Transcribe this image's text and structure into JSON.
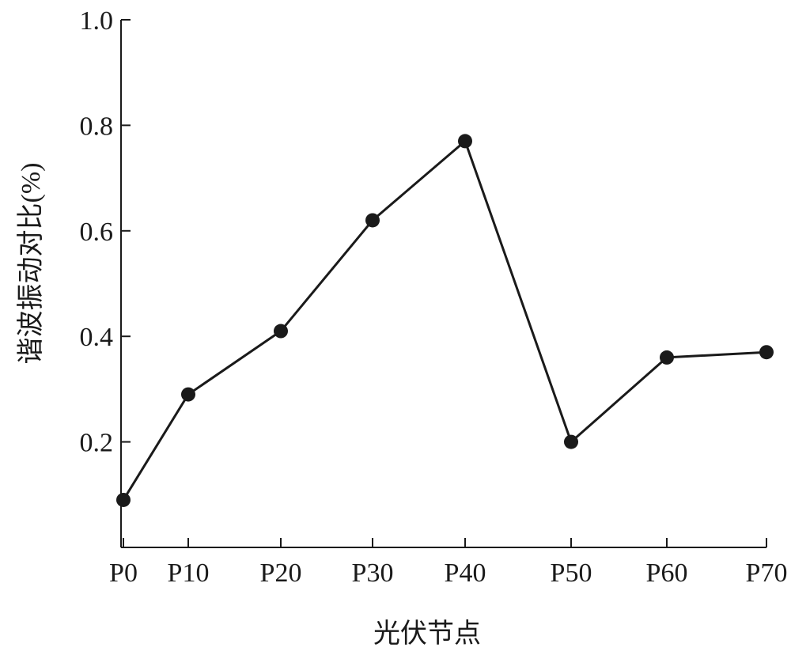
{
  "chart_data": {
    "type": "line",
    "categories": [
      "P0",
      "P10",
      "P20",
      "P30",
      "P40",
      "P50",
      "P60",
      "P70"
    ],
    "series": [
      {
        "values": [
          0.09,
          0.29,
          0.41,
          0.62,
          0.77,
          0.2,
          0.36,
          0.37
        ],
        "color": "#1a1a1a"
      }
    ],
    "xlabel": "光伏节点",
    "ylabel": "谐波振动对比(%)",
    "ylim": [
      0,
      1.0
    ],
    "yticks": [
      "0.2",
      "0.4",
      "0.6",
      "0.8",
      "1.0"
    ],
    "grid": false
  }
}
